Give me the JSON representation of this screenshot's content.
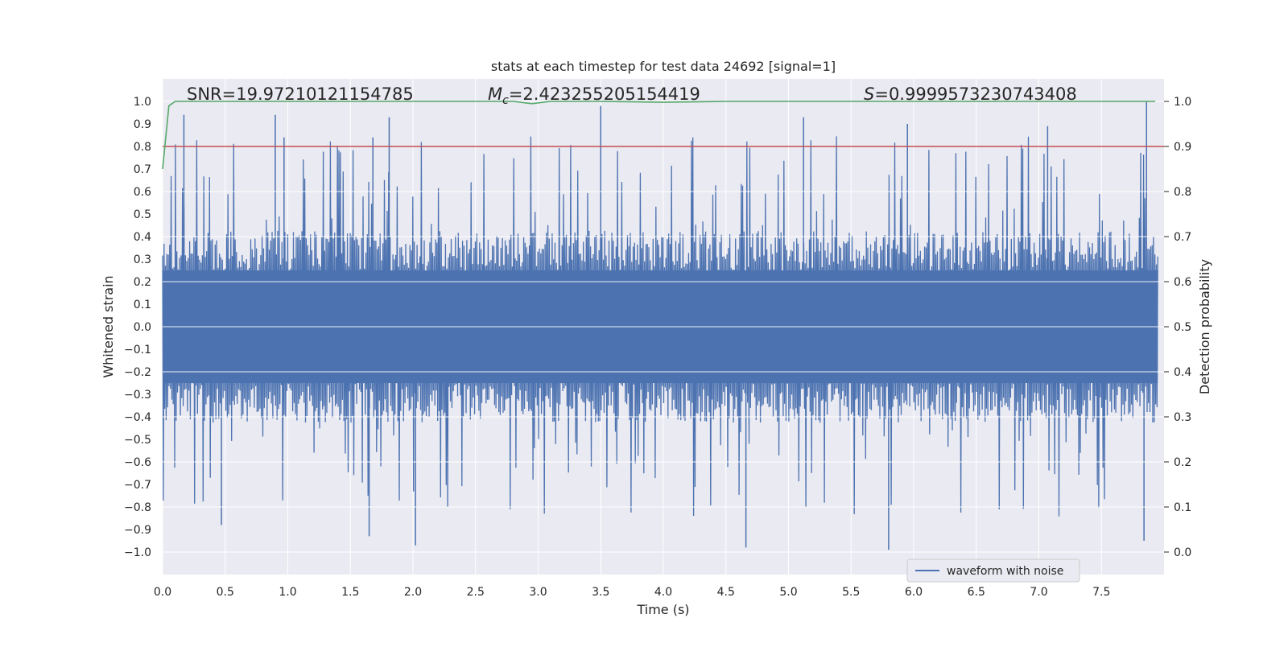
{
  "chart_data": {
    "type": "line",
    "title": "stats at each timestep for test data 24692 [signal=1]",
    "xlabel": "Time (s)",
    "ylabel": "Whitened strain",
    "y2label": "Detection probability",
    "xlim": [
      0.0,
      8.0
    ],
    "ylim": [
      -1.1,
      1.1
    ],
    "y2lim": [
      -0.05,
      1.05
    ],
    "xticks": [
      "0.0",
      "0.5",
      "1.0",
      "1.5",
      "2.0",
      "2.5",
      "3.0",
      "3.5",
      "4.0",
      "4.5",
      "5.0",
      "5.5",
      "6.0",
      "6.5",
      "7.0",
      "7.5"
    ],
    "yticks": [
      "1.0",
      "0.9",
      "0.8",
      "0.7",
      "0.6",
      "0.5",
      "0.4",
      "0.3",
      "0.2",
      "0.1",
      "0.0",
      "−0.1",
      "−0.2",
      "−0.3",
      "−0.4",
      "−0.5",
      "−0.6",
      "−0.7",
      "−0.8",
      "−0.9",
      "−1.0"
    ],
    "y2ticks": [
      "1.0",
      "0.9",
      "0.8",
      "0.7",
      "0.6",
      "0.5",
      "0.4",
      "0.3",
      "0.2",
      "0.1",
      "0.0"
    ],
    "grid": true,
    "legend_position": "lower-right",
    "annotations": {
      "snr_text": "SNR=19.97210121154785",
      "mc_prefix": "M",
      "mc_sub": "c",
      "mc_value": "=2.423255205154419",
      "s_prefix": "S",
      "s_value": "=0.9999573230743408"
    },
    "threshold": {
      "value": 0.9,
      "axis": "right",
      "color": "#c44e52"
    },
    "series": [
      {
        "name": "waveform with noise",
        "axis": "left",
        "color": "#4c72b0",
        "kind": "noise-trace",
        "envelope_typical": [
          -0.45,
          0.45
        ],
        "peak_max": 1.0,
        "peak_min": -1.0,
        "peaks": [
          {
            "x": 0.17,
            "y": 0.94
          },
          {
            "x": 0.9,
            "y": 0.94
          },
          {
            "x": 0.97,
            "y": 0.84
          },
          {
            "x": 1.68,
            "y": 0.84
          },
          {
            "x": 1.81,
            "y": 0.93
          },
          {
            "x": 3.5,
            "y": 0.98
          },
          {
            "x": 5.12,
            "y": 0.93
          },
          {
            "x": 5.95,
            "y": 0.9
          },
          {
            "x": 7.07,
            "y": 0.89
          },
          {
            "x": 7.86,
            "y": 1.0
          },
          {
            "x": 0.47,
            "y": -0.88
          },
          {
            "x": 1.65,
            "y": -0.93
          },
          {
            "x": 2.02,
            "y": -0.97
          },
          {
            "x": 4.66,
            "y": -0.98
          },
          {
            "x": 5.8,
            "y": -0.99
          },
          {
            "x": 7.84,
            "y": -0.95
          }
        ]
      },
      {
        "axis": "right",
        "color": "#55a868",
        "x": [
          0.0,
          0.05,
          0.1,
          0.5,
          1.0,
          2.0,
          2.8,
          2.95,
          3.1,
          3.5,
          4.0,
          4.5,
          5.0,
          6.0,
          7.0,
          7.6,
          7.93
        ],
        "values": [
          0.85,
          0.99,
          1.0,
          1.0,
          1.0,
          1.0,
          1.0,
          0.995,
          1.0,
          1.0,
          0.998,
          1.0,
          1.0,
          1.0,
          1.0,
          1.0,
          1.0
        ]
      }
    ]
  }
}
